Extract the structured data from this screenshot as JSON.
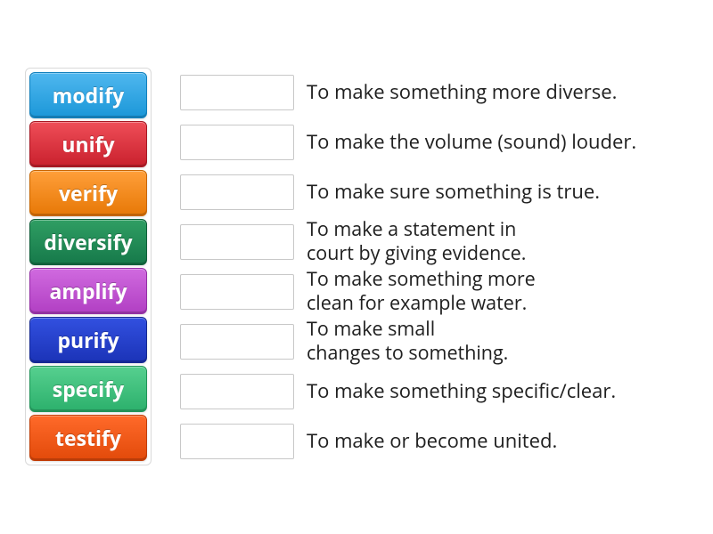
{
  "words": [
    {
      "label": "modify",
      "bg_top": "#4fb7ef",
      "bg_bottom": "#1b97d8",
      "border": "#1180bd"
    },
    {
      "label": "unify",
      "bg_top": "#ef4e58",
      "bg_bottom": "#c9202d",
      "border": "#a81723"
    },
    {
      "label": "verify",
      "bg_top": "#ff9f3a",
      "bg_bottom": "#e77806",
      "border": "#c96600"
    },
    {
      "label": "diversify",
      "bg_top": "#2f9e63",
      "bg_bottom": "#16794a",
      "border": "#0e5f39"
    },
    {
      "label": "amplify",
      "bg_top": "#d06adf",
      "bg_bottom": "#b13fc3",
      "border": "#952ea6"
    },
    {
      "label": "purify",
      "bg_top": "#3250e0",
      "bg_bottom": "#1b33b7",
      "border": "#142893"
    },
    {
      "label": "specify",
      "bg_top": "#56d08f",
      "bg_bottom": "#2cb06c",
      "border": "#1f9458"
    },
    {
      "label": "testify",
      "bg_top": "#ff6a2a",
      "bg_bottom": "#e24a0a",
      "border": "#c23d05"
    }
  ],
  "definitions": [
    {
      "lines": [
        "To make something more diverse."
      ]
    },
    {
      "lines": [
        "To make the volume (sound) louder."
      ]
    },
    {
      "lines": [
        "To make sure something is true."
      ]
    },
    {
      "lines": [
        "To make a statement in",
        "court by giving evidence."
      ]
    },
    {
      "lines": [
        "To make something more",
        "clean for example water."
      ]
    },
    {
      "lines": [
        "To make small",
        "changes to something."
      ]
    },
    {
      "lines": [
        "To make something specific/clear."
      ]
    },
    {
      "lines": [
        "To make or become united."
      ]
    }
  ],
  "layout": {
    "word_tile_font_size": 23,
    "def_font_size": 22
  }
}
